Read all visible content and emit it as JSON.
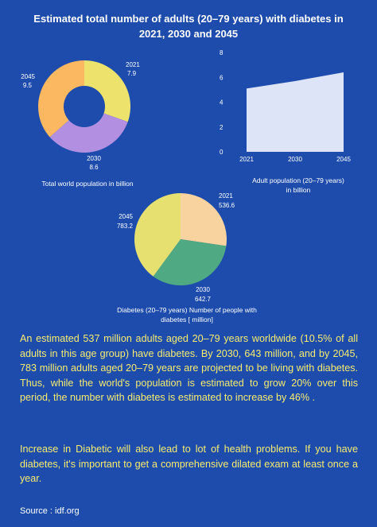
{
  "title": {
    "line1": "Estimated total number of adults (20–79 years) with  diabetes in",
    "line2": "2021, 2030 and 2045"
  },
  "colors": {
    "background": "#1d4cad",
    "text_highlight": "#f6ec6e",
    "donut_2021": "#ede36c",
    "donut_2030": "#b28fe0",
    "donut_2045": "#fbb860",
    "area_fill": "#dde4f7",
    "pie_2021": "#f8d3a0",
    "pie_2030": "#4fa982",
    "pie_2045": "#e6e070"
  },
  "chart_data": [
    {
      "type": "pie",
      "style": "donut",
      "caption": "Total world population  in billion",
      "categories": [
        "2021",
        "2030",
        "2045"
      ],
      "values": [
        7.9,
        8.6,
        9.5
      ],
      "labels": [
        "7.9",
        "8.6",
        "9.5"
      ]
    },
    {
      "type": "area",
      "caption": "Adult population (20–79 years) in billion",
      "x": [
        "2021",
        "2030",
        "2045"
      ],
      "values": [
        5.1,
        5.7,
        6.4
      ],
      "ylim": [
        0,
        8
      ],
      "yticks": [
        "0",
        "2",
        "4",
        "6",
        "8"
      ],
      "grid": false
    },
    {
      "type": "pie",
      "caption": "Diabetes (20–79 years) Number of people with diabetes [ million]",
      "categories": [
        "2021",
        "2030",
        "2045"
      ],
      "values": [
        536.6,
        642.7,
        783.2
      ],
      "labels": [
        "536.6",
        "642.7",
        "783.2"
      ]
    }
  ],
  "paragraph1": "An estimated 537 million adults aged 20–79 years worldwide (10.5% of all adults in this age group) have diabetes. By 2030, 643 million, and by 2045, 783 million adults aged 20–79 years are projected to be living with diabetes. Thus, while the world's population is estimated to grow 20% over this period, the number with diabetes is estimated to increase by 46% .",
  "paragraph2": "Increase in Diabetic will also lead to lot of health problems.  If you have diabetes, it's important to get a comprehensive dilated exam at least once a year.",
  "source": "Source : idf.org"
}
